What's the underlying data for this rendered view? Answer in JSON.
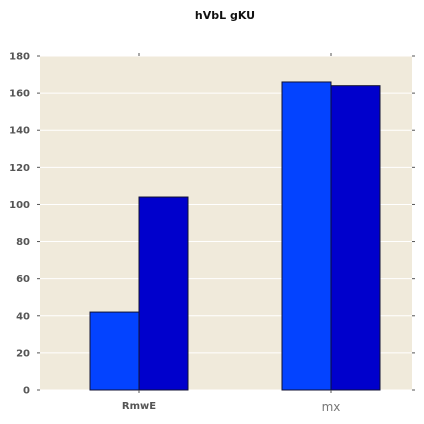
{
  "chart_data": {
    "type": "bar",
    "title": "hVbL gKU",
    "xlabel": "",
    "ylabel": "",
    "categories": [
      "RmwE",
      "mx"
    ],
    "series": [
      {
        "values": [
          42,
          166
        ],
        "color": "#0343ff"
      },
      {
        "values": [
          104,
          164
        ],
        "color": "#0000cc"
      }
    ],
    "ylim": [
      0,
      180
    ],
    "yticks": [
      0,
      20,
      40,
      60,
      80,
      100,
      120,
      140,
      160,
      180
    ],
    "grid": true,
    "background": "#f0eadb",
    "legend": "none"
  }
}
